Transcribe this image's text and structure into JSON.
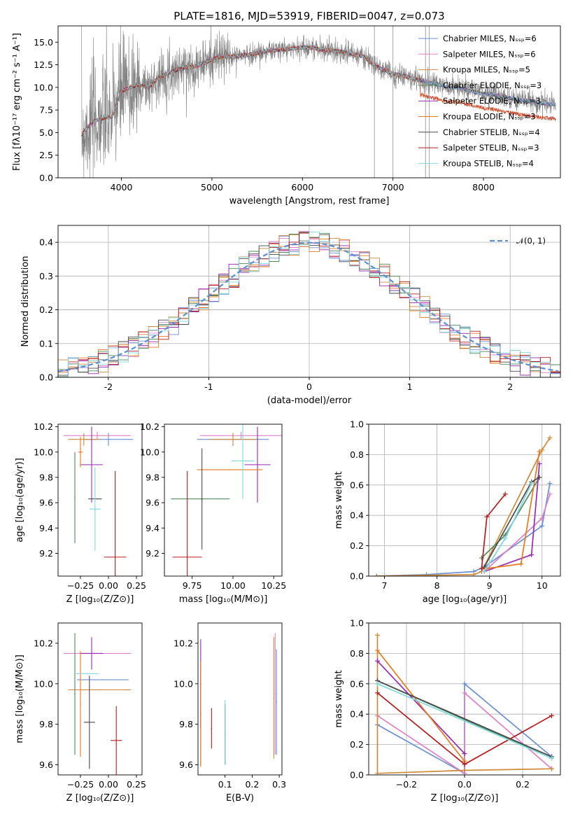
{
  "colors": [
    "#6a8fd6",
    "#e07fc8",
    "#d08a3a",
    "#4f8a5c",
    "#9a28b8",
    "#e8781c",
    "#4a4a4a",
    "#b81c1c",
    "#7fd8e0"
  ],
  "chart_data": [
    {
      "type": "line",
      "title": "PLATE=1816, MJD=53919, FIBERID=0047, z=0.073",
      "xlabel": "wavelength [Angstrom, rest frame]",
      "ylabel": "Flux [fλ10⁻¹⁷ erg cm⁻² s⁻¹ A⁻¹]",
      "xlim": [
        3300,
        8850
      ],
      "ylim": [
        0,
        16.8
      ],
      "xticks": [
        4000,
        5000,
        6000,
        7000,
        8000
      ],
      "yticks": [
        0.0,
        2.5,
        5.0,
        7.5,
        10.0,
        12.5,
        15.0
      ],
      "legend_position": "top-right",
      "legend": [
        "Chabrier MILES, Nₛₛₚ=6",
        "Salpeter MILES, Nₛₛₚ=6",
        "Kroupa MILES, Nₛₛₚ=5",
        "Chabrier ELODIE, Nₛₛₚ=3",
        "Salpeter ELODIE, Nₛₛₚ=3",
        "Kroupa ELODIE, Nₛₛₚ=3",
        "Chabrier STELIB, Nₛₛₚ=4",
        "Salpeter STELIB, Nₛₛₚ=3",
        "Kroupa STELIB, Nₛₛₚ=4"
      ],
      "model_continuum": {
        "x": [
          3550,
          3600,
          3700,
          3800,
          3900,
          4000,
          4100,
          4200,
          4300,
          4400,
          4500,
          4600,
          4700,
          4800,
          4900,
          5000,
          5100,
          5200,
          5300,
          5400,
          5500,
          5600,
          5700,
          5800,
          5900,
          6000,
          6100,
          6200,
          6300,
          6400,
          6500,
          6600,
          6700,
          6750,
          6800,
          6900,
          7000,
          7100,
          7200,
          7300,
          7400,
          7500,
          7600,
          7700,
          7800,
          7900,
          8000,
          8100,
          8200,
          8300,
          8400,
          8500,
          8600,
          8700,
          8800
        ],
        "y": [
          4.6,
          5.3,
          6.3,
          6.6,
          6.8,
          9.6,
          10.0,
          10.3,
          10.0,
          11.0,
          11.5,
          11.9,
          12.2,
          12.3,
          12.6,
          13.1,
          13.4,
          13.4,
          13.5,
          13.6,
          13.8,
          14.0,
          14.1,
          14.2,
          14.3,
          14.4,
          14.4,
          14.2,
          14.1,
          14.0,
          13.8,
          13.6,
          13.3,
          12.7,
          12.4,
          11.9,
          11.5,
          11.3,
          11.0,
          10.8,
          10.5,
          10.3,
          10.0,
          10.0,
          9.8,
          9.5,
          9.3,
          9.2,
          9.0,
          8.8,
          8.6,
          8.5,
          8.3,
          8.2,
          8.1
        ]
      },
      "vertical_lines_x": [
        6795,
        7000,
        7360,
        7400
      ]
    },
    {
      "type": "bar",
      "title": "",
      "xlabel": "(data-model)/error",
      "ylabel": "Normed distribution",
      "xlim": [
        -2.5,
        2.5
      ],
      "ylim": [
        0,
        0.45
      ],
      "xticks": [
        -2,
        -1,
        0,
        1,
        2
      ],
      "yticks": [
        0.0,
        0.1,
        0.2,
        0.3,
        0.4
      ],
      "legend_position": "top-right",
      "legend": [
        "𝒩(0, 1)"
      ],
      "bin_width": 0.1
    },
    {
      "type": "scatter",
      "xlabel": "Z [log₁₀(Z/Z⊙)]",
      "ylabel": "age  [log₁₀(age/yr)]",
      "xlim": [
        -0.45,
        0.3
      ],
      "ylim": [
        9.02,
        10.22
      ],
      "xticks": [
        -0.25,
        0.0,
        0.25
      ],
      "yticks": [
        9.2,
        9.4,
        9.6,
        9.8,
        10.0,
        10.2
      ],
      "points": [
        {
          "x": 0.0,
          "y": 10.1,
          "xerr": 0.22,
          "yerr": 0.05
        },
        {
          "x": -0.1,
          "y": 10.13,
          "xerr": 0.3,
          "yerr": 0.03
        },
        {
          "x": -0.22,
          "y": 10.1,
          "xerr": 0.14,
          "yerr": 0.05
        },
        {
          "x": -0.3,
          "y": 9.64,
          "xerr": 0.0,
          "yerr": 0.36
        },
        {
          "x": -0.15,
          "y": 9.9,
          "xerr": 0.1,
          "yerr": 0.3
        },
        {
          "x": -0.25,
          "y": 10.0,
          "xerr": 0.02,
          "yerr": 0.12
        },
        {
          "x": -0.12,
          "y": 9.63,
          "xerr": 0.06,
          "yerr": 0.0
        },
        {
          "x": 0.06,
          "y": 9.17,
          "xerr": 0.1,
          "yerr": 0.68
        },
        {
          "x": -0.12,
          "y": 9.55,
          "xerr": 0.05,
          "yerr": 0.33
        }
      ]
    },
    {
      "type": "scatter",
      "xlabel": "mass [log₁₀(M/M⊙)]",
      "ylabel": "",
      "xlim": [
        9.58,
        10.3
      ],
      "ylim": [
        9.02,
        10.22
      ],
      "xticks": [
        9.75,
        10.0,
        10.25
      ],
      "yticks": [
        9.2,
        9.4,
        9.6,
        9.8,
        10.0,
        10.2
      ],
      "points": [
        {
          "x": 10.0,
          "y": 10.1,
          "xerr": 0.22,
          "yerr": 0.05
        },
        {
          "x": 10.05,
          "y": 10.13,
          "xerr": 0.25,
          "yerr": 0.03
        },
        {
          "x": 10.0,
          "y": 10.1,
          "xerr": 0.14,
          "yerr": 0.05
        },
        {
          "x": 9.8,
          "y": 9.63,
          "xerr": 0.18,
          "yerr": 0.0
        },
        {
          "x": 10.15,
          "y": 9.9,
          "xerr": 0.08,
          "yerr": 0.3
        },
        {
          "x": 9.98,
          "y": 9.86,
          "xerr": 0.2,
          "yerr": 0.0
        },
        {
          "x": 9.81,
          "y": 9.63,
          "xerr": 0.0,
          "yerr": 0.4
        },
        {
          "x": 9.72,
          "y": 9.17,
          "xerr": 0.09,
          "yerr": 0.68
        },
        {
          "x": 10.06,
          "y": 9.93,
          "xerr": 0.07,
          "yerr": 0.3
        }
      ]
    },
    {
      "type": "line",
      "xlabel": "age  [log₁₀(age/yr)]",
      "ylabel": "mass weight",
      "xlim": [
        6.7,
        10.35
      ],
      "ylim": [
        0,
        1.0
      ],
      "xticks": [
        7,
        8,
        9,
        10
      ],
      "yticks": [
        0.0,
        0.2,
        0.4,
        0.6,
        0.8,
        1.0
      ],
      "series": [
        {
          "x": [
            6.85,
            7.8,
            8.7,
            8.9,
            10.0,
            10.15
          ],
          "y": [
            0.0,
            0.01,
            0.03,
            0.06,
            0.33,
            0.61
          ]
        },
        {
          "x": [
            8.9,
            10.0,
            10.15
          ],
          "y": [
            0.03,
            0.38,
            0.54
          ]
        },
        {
          "x": [
            6.85,
            8.7,
            8.85,
            10.0,
            10.15
          ],
          "y": [
            0.0,
            0.01,
            0.03,
            0.83,
            0.91
          ]
        },
        {
          "x": [
            8.85,
            9.3,
            9.95
          ],
          "y": [
            0.12,
            0.27,
            0.65
          ]
        },
        {
          "x": [
            8.9,
            9.8,
            9.95
          ],
          "y": [
            0.03,
            0.14,
            0.74
          ]
        },
        {
          "x": [
            8.95,
            9.6,
            9.95
          ],
          "y": [
            0.05,
            0.08,
            0.82
          ]
        },
        {
          "x": [
            8.9,
            9.8,
            9.95
          ],
          "y": [
            0.06,
            0.62,
            0.65
          ]
        },
        {
          "x": [
            8.85,
            8.95,
            9.3
          ],
          "y": [
            0.05,
            0.39,
            0.54
          ]
        },
        {
          "x": [
            8.9,
            9.3,
            9.8
          ],
          "y": [
            0.03,
            0.25,
            0.61
          ]
        }
      ]
    },
    {
      "type": "scatter",
      "xlabel": "Z [log₁₀(Z/Z⊙)]",
      "ylabel": "mass [log₁₀(M/M⊙)]",
      "xlim": [
        -0.45,
        0.3
      ],
      "ylim": [
        9.55,
        10.3
      ],
      "xticks": [
        -0.25,
        0.0,
        0.25
      ],
      "yticks": [
        9.6,
        9.8,
        10.0,
        10.2
      ],
      "points": [
        {
          "x": -0.05,
          "y": 10.02,
          "xerr": 0.23,
          "yerr": 0.0
        },
        {
          "x": -0.1,
          "y": 10.15,
          "xerr": 0.3,
          "yerr": 0.0
        },
        {
          "x": -0.08,
          "y": 9.97,
          "xerr": 0.28,
          "yerr": 0.0
        },
        {
          "x": -0.3,
          "y": 9.95,
          "xerr": 0.0,
          "yerr": 0.3
        },
        {
          "x": -0.15,
          "y": 10.15,
          "xerr": 0.1,
          "yerr": 0.08
        },
        {
          "x": -0.25,
          "y": 9.9,
          "xerr": 0.0,
          "yerr": 0.26
        },
        {
          "x": -0.17,
          "y": 9.81,
          "xerr": 0.05,
          "yerr": 0.23
        },
        {
          "x": 0.07,
          "y": 9.72,
          "xerr": 0.05,
          "yerr": 0.17
        },
        {
          "x": -0.19,
          "y": 10.05,
          "xerr": 0.1,
          "yerr": 0.0
        }
      ]
    },
    {
      "type": "scatter",
      "xlabel": "E(B-V)",
      "ylabel": "",
      "xlim": [
        0.0,
        0.31
      ],
      "ylim": [
        9.55,
        10.3
      ],
      "xticks": [
        0.1,
        0.2,
        0.3
      ],
      "yticks": [
        9.6,
        9.8,
        10.0,
        10.2
      ],
      "points": [
        {
          "x": 0.29,
          "y": 9.91,
          "xerr": 0.0,
          "yerr": 0.26
        },
        {
          "x": 0.285,
          "y": 9.95,
          "xerr": 0.0,
          "yerr": 0.3
        },
        {
          "x": 0.28,
          "y": 9.93,
          "xerr": 0.0,
          "yerr": 0.3
        },
        {
          "x": 0.01,
          "y": 9.85,
          "xerr": 0.0,
          "yerr": 0.25
        },
        {
          "x": 0.01,
          "y": 10.0,
          "xerr": 0.0,
          "yerr": 0.22
        },
        {
          "x": 0.01,
          "y": 9.85,
          "xerr": 0.0,
          "yerr": 0.26
        },
        {
          "x": 0.1,
          "y": 9.75,
          "xerr": 0.0,
          "yerr": 0.15
        },
        {
          "x": 0.05,
          "y": 9.78,
          "xerr": 0.0,
          "yerr": 0.1
        },
        {
          "x": 0.1,
          "y": 9.76,
          "xerr": 0.0,
          "yerr": 0.16
        }
      ]
    },
    {
      "type": "line",
      "xlabel": "Z [log₁₀(Z/Z⊙)]",
      "ylabel": "mass weight",
      "xlim": [
        -0.33,
        0.33
      ],
      "ylim": [
        0,
        1.0
      ],
      "xticks": [
        -0.2,
        0.0,
        0.2
      ],
      "yticks": [
        0.0,
        0.2,
        0.4,
        0.6,
        0.8,
        1.0
      ],
      "series": [
        {
          "x": [
            -0.3,
            0.0,
            0.0,
            0.3
          ],
          "y": [
            0.33,
            0.01,
            0.6,
            0.12
          ]
        },
        {
          "x": [
            -0.3,
            0.0,
            0.0,
            0.3
          ],
          "y": [
            0.39,
            0.01,
            0.54,
            0.04
          ]
        },
        {
          "x": [
            -0.3,
            -0.3,
            0.0,
            0.3
          ],
          "y": [
            0.92,
            0.01,
            0.03,
            0.04
          ]
        },
        {
          "x": [
            -0.3,
            0.3
          ],
          "y": [
            0.62,
            0.11
          ]
        },
        {
          "x": [
            -0.3,
            0.0
          ],
          "y": [
            0.75,
            0.14
          ]
        },
        {
          "x": [
            -0.3,
            0.0
          ],
          "y": [
            0.82,
            0.09
          ]
        },
        {
          "x": [
            -0.3,
            0.3
          ],
          "y": [
            0.62,
            0.12
          ]
        },
        {
          "x": [
            -0.3,
            0.0,
            0.3
          ],
          "y": [
            0.54,
            0.07,
            0.39
          ]
        },
        {
          "x": [
            -0.3,
            0.3
          ],
          "y": [
            0.6,
            0.11
          ]
        }
      ]
    }
  ]
}
